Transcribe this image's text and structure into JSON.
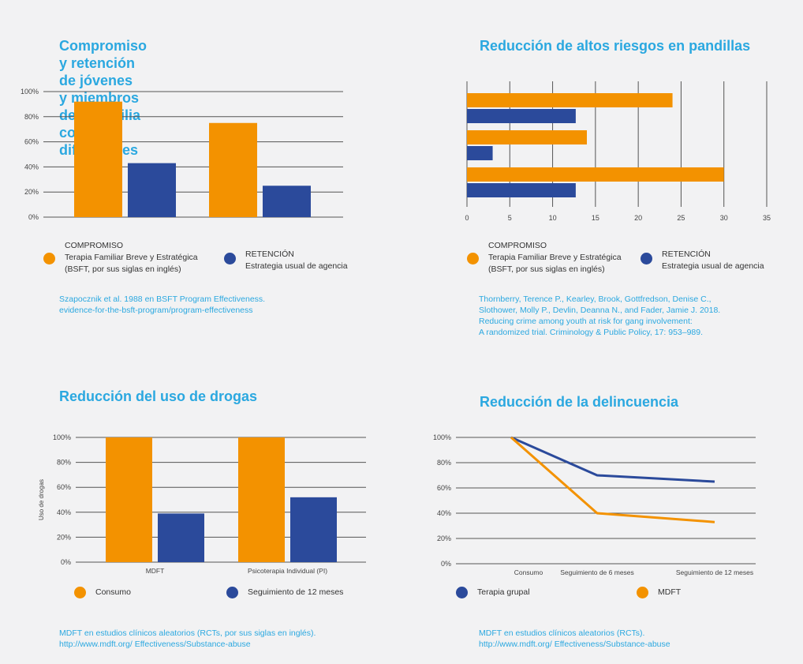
{
  "colors": {
    "orange": "#f39200",
    "blue": "#2b4a9b",
    "title": "#2ba8e0"
  },
  "panel1": {
    "title_line1": "Compromiso y retención de jóvenes",
    "title_line2": "y miembros de la familia con dificultades",
    "legend_a": {
      "heading": "COMPROMISO",
      "line1": "Terapia Familiar Breve y Estratégica",
      "line2": "(BSFT, por sus siglas en inglés)"
    },
    "legend_b": {
      "heading": "RETENCIÓN",
      "line1": "Estrategia usual de agencia"
    },
    "source_line1": "Szapocznik et al. 1988 en BSFT Program Effectiveness.",
    "source_line2": "evidence-for-the-bsft-program/program-effectiveness"
  },
  "panel2": {
    "title": "Reducción de altos riesgos en pandillas",
    "legend_a": {
      "heading": "COMPROMISO",
      "line1": "Terapia Familiar Breve y Estratégica",
      "line2": "(BSFT, por sus siglas en inglés)"
    },
    "legend_b": {
      "heading": "RETENCIÓN",
      "line1": "Estrategia usual de agencia"
    },
    "source_line1": "Thornberry, Terence P., Kearley, Brook, Gottfredson, Denise C.,",
    "source_line2": "Slothower, Molly P., Devlin, Deanna N., and Fader, Jamie J. 2018.",
    "source_line3": "Reducing crime among youth at risk for gang involvement:",
    "source_line4": "A randomized trial. Criminology & Public Policy, 17: 953–989."
  },
  "panel3": {
    "title": "Reducción del uso de drogas",
    "legend_a": "Consumo",
    "legend_b": "Seguimiento de 12 meses",
    "source_line1": "MDFT en estudios clínicos aleatorios (RCTs, por sus siglas en inglés).",
    "source_line2": "http://www.mdft.org/ Effectiveness/Substance-abuse"
  },
  "panel4": {
    "title": "Reducción de la delincuencia",
    "legend_a": "Terapia grupal",
    "legend_b": "MDFT",
    "source_line1": "MDFT en estudios clínicos aleatorios (RCTs).",
    "source_line2": "http://www.mdft.org/ Effectiveness/Substance-abuse"
  },
  "chart_data": [
    {
      "type": "bar",
      "title": "Compromiso y retención de jóvenes y miembros de la familia con dificultades",
      "categories": [
        "",
        ""
      ],
      "series": [
        {
          "name": "COMPROMISO",
          "values": [
            92,
            75
          ]
        },
        {
          "name": "RETENCIÓN",
          "values": [
            43,
            25
          ]
        }
      ],
      "yticks": [
        "0%",
        "20%",
        "40%",
        "60%",
        "80%",
        "100%"
      ],
      "ylim": [
        0,
        100
      ]
    },
    {
      "type": "bar",
      "orientation": "horizontal",
      "title": "Reducción de altos riesgos en pandillas",
      "categories": [
        "",
        "",
        ""
      ],
      "series": [
        {
          "name": "COMPROMISO",
          "values": [
            24,
            14,
            30
          ]
        },
        {
          "name": "RETENCIÓN",
          "values": [
            12.7,
            3,
            12.7
          ]
        }
      ],
      "xticks": [
        "0",
        "5",
        "10",
        "15",
        "20",
        "25",
        "30",
        "35"
      ],
      "xlim": [
        0,
        35
      ]
    },
    {
      "type": "bar",
      "title": "Reducción del uso de drogas",
      "ylabel": "Uso de drogas",
      "categories": [
        "MDFT",
        "Psicoterapia Individual (PI)"
      ],
      "series": [
        {
          "name": "Consumo",
          "values": [
            100,
            100
          ]
        },
        {
          "name": "Seguimiento de 12 meses",
          "values": [
            39,
            52
          ]
        }
      ],
      "yticks": [
        "0%",
        "20%",
        "40%",
        "60%",
        "80%",
        "100%"
      ],
      "ylim": [
        0,
        100
      ]
    },
    {
      "type": "line",
      "title": "Reducción de la delincuencia",
      "categories": [
        "Consumo",
        "Seguimiento de 6 meses",
        "Seguimiento de 12 meses"
      ],
      "series": [
        {
          "name": "Terapia grupal",
          "values": [
            100,
            70,
            65
          ]
        },
        {
          "name": "MDFT",
          "values": [
            100,
            40,
            33
          ]
        }
      ],
      "yticks": [
        "0%",
        "20%",
        "40%",
        "60%",
        "80%",
        "100%"
      ],
      "ylim": [
        0,
        100
      ]
    }
  ]
}
